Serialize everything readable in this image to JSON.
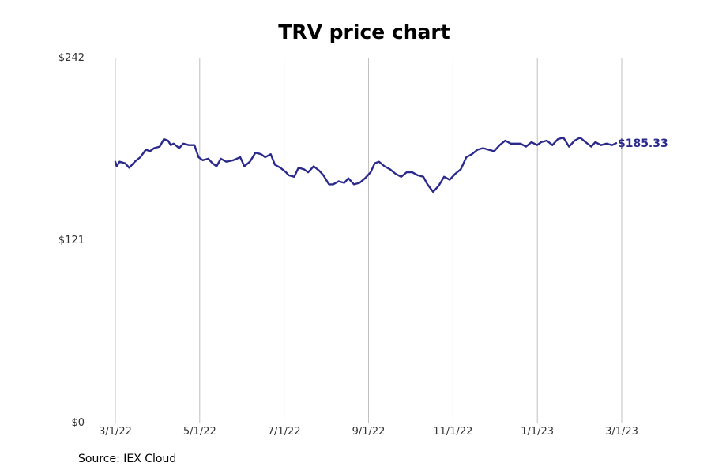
{
  "chart_data": {
    "type": "line",
    "title": "TRV price chart",
    "xlabel": "",
    "ylabel": "",
    "x_ticks": [
      "3/1/22",
      "5/1/22",
      "7/1/22",
      "9/1/22",
      "11/1/22",
      "1/1/23",
      "3/1/23"
    ],
    "y_ticks": [
      "$0",
      "$121",
      "$242"
    ],
    "ylim": [
      0,
      242
    ],
    "xlim": [
      "2022-03-01",
      "2023-03-01"
    ],
    "grid": "vertical",
    "line_color": "#2b2a8c",
    "last_value_label": "$185.33",
    "series": [
      {
        "points": [
          [
            "2022-03-01",
            173
          ],
          [
            "2022-03-02",
            170
          ],
          [
            "2022-03-04",
            173
          ],
          [
            "2022-03-08",
            172
          ],
          [
            "2022-03-11",
            169
          ],
          [
            "2022-03-15",
            173
          ],
          [
            "2022-03-19",
            176
          ],
          [
            "2022-03-23",
            181
          ],
          [
            "2022-03-26",
            180
          ],
          [
            "2022-03-29",
            182
          ],
          [
            "2022-04-02",
            183
          ],
          [
            "2022-04-05",
            188
          ],
          [
            "2022-04-08",
            187
          ],
          [
            "2022-04-10",
            184
          ],
          [
            "2022-04-12",
            185
          ],
          [
            "2022-04-16",
            182
          ],
          [
            "2022-04-19",
            185
          ],
          [
            "2022-04-23",
            184
          ],
          [
            "2022-04-27",
            184
          ],
          [
            "2022-04-30",
            176
          ],
          [
            "2022-05-03",
            174
          ],
          [
            "2022-05-07",
            175
          ],
          [
            "2022-05-10",
            172
          ],
          [
            "2022-05-13",
            170
          ],
          [
            "2022-05-16",
            175
          ],
          [
            "2022-05-20",
            173
          ],
          [
            "2022-05-25",
            174
          ],
          [
            "2022-05-30",
            176
          ],
          [
            "2022-06-02",
            170
          ],
          [
            "2022-06-06",
            173
          ],
          [
            "2022-06-10",
            179
          ],
          [
            "2022-06-14",
            178
          ],
          [
            "2022-06-17",
            176
          ],
          [
            "2022-06-21",
            178
          ],
          [
            "2022-06-24",
            171
          ],
          [
            "2022-06-28",
            169
          ],
          [
            "2022-07-02",
            166
          ],
          [
            "2022-07-04",
            164
          ],
          [
            "2022-07-08",
            163
          ],
          [
            "2022-07-11",
            169
          ],
          [
            "2022-07-15",
            168
          ],
          [
            "2022-07-18",
            166
          ],
          [
            "2022-07-22",
            170
          ],
          [
            "2022-07-26",
            167
          ],
          [
            "2022-07-29",
            164
          ],
          [
            "2022-08-02",
            158
          ],
          [
            "2022-08-05",
            158
          ],
          [
            "2022-08-09",
            160
          ],
          [
            "2022-08-13",
            159
          ],
          [
            "2022-08-16",
            162
          ],
          [
            "2022-08-20",
            158
          ],
          [
            "2022-08-24",
            159
          ],
          [
            "2022-08-28",
            162
          ],
          [
            "2022-09-01",
            166
          ],
          [
            "2022-09-04",
            172
          ],
          [
            "2022-09-07",
            173
          ],
          [
            "2022-09-11",
            170
          ],
          [
            "2022-09-15",
            168
          ],
          [
            "2022-09-19",
            165
          ],
          [
            "2022-09-23",
            163
          ],
          [
            "2022-09-27",
            166
          ],
          [
            "2022-10-01",
            166
          ],
          [
            "2022-10-05",
            164
          ],
          [
            "2022-10-09",
            163
          ],
          [
            "2022-10-12",
            158
          ],
          [
            "2022-10-16",
            153
          ],
          [
            "2022-10-20",
            157
          ],
          [
            "2022-10-24",
            163
          ],
          [
            "2022-10-28",
            161
          ],
          [
            "2022-11-01",
            165
          ],
          [
            "2022-11-05",
            168
          ],
          [
            "2022-11-09",
            176
          ],
          [
            "2022-11-13",
            178
          ],
          [
            "2022-11-17",
            181
          ],
          [
            "2022-11-21",
            182
          ],
          [
            "2022-11-25",
            181
          ],
          [
            "2022-11-29",
            180
          ],
          [
            "2022-12-03",
            184
          ],
          [
            "2022-12-07",
            187
          ],
          [
            "2022-12-11",
            185
          ],
          [
            "2022-12-15",
            185
          ],
          [
            "2022-12-18",
            185
          ],
          [
            "2022-12-22",
            183
          ],
          [
            "2022-12-26",
            186
          ],
          [
            "2022-12-30",
            184
          ],
          [
            "2023-01-02",
            186
          ],
          [
            "2023-01-06",
            187
          ],
          [
            "2023-01-10",
            184
          ],
          [
            "2023-01-14",
            188
          ],
          [
            "2023-01-18",
            189
          ],
          [
            "2023-01-22",
            183
          ],
          [
            "2023-01-26",
            187
          ],
          [
            "2023-01-30",
            189
          ],
          [
            "2023-02-03",
            186
          ],
          [
            "2023-02-07",
            183
          ],
          [
            "2023-02-10",
            186
          ],
          [
            "2023-02-14",
            184
          ],
          [
            "2023-02-18",
            185
          ],
          [
            "2023-02-22",
            184
          ],
          [
            "2023-02-25",
            185.33
          ]
        ]
      }
    ]
  },
  "source_note": "Source: IEX Cloud"
}
